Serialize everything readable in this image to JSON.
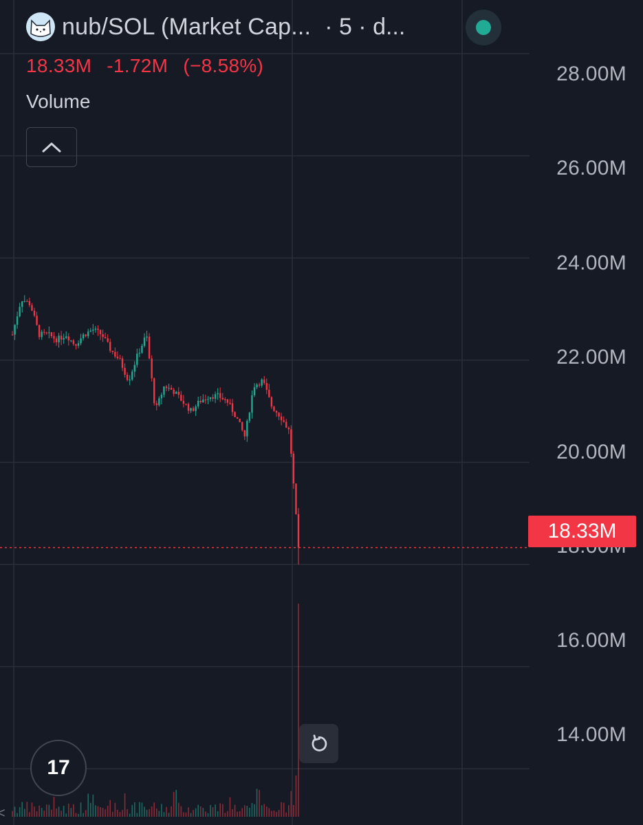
{
  "header": {
    "title": "nub/SOL (Market Cap...",
    "extra": "· 5 · d...",
    "avatar_icon": "cat-avatar-icon",
    "live_status_color": "#22ab94"
  },
  "price_info": {
    "last": "18.33M",
    "change": "-1.72M",
    "change_pct": "(−8.58%)",
    "color": "#f23645"
  },
  "volume": {
    "label": "Volume",
    "toggle_icon": "chevron-up-icon"
  },
  "controls": {
    "reset_icon": "reset-rotate-icon",
    "logo_icon": "tradingview-logo-icon",
    "logo_text": "17",
    "edge_mark": "<"
  },
  "colors": {
    "background": "#161a25",
    "grid": "#2a2e39",
    "up": "#22ab94",
    "down": "#f23645",
    "axis_text": "#b2b5be"
  },
  "chart_data": {
    "type": "line",
    "title": "nub/SOL (Market Cap...",
    "y_axis": {
      "ticks": [
        "28.00M",
        "26.00M",
        "24.00M",
        "22.00M",
        "20.00M",
        "18.00M",
        "16.00M",
        "14.00M"
      ],
      "tick_values": [
        28,
        26,
        24,
        22,
        20,
        18,
        16,
        14
      ],
      "range": [
        12.9,
        29.05
      ],
      "unit": "M",
      "side": "right"
    },
    "last_price_label": "18.33M",
    "last_price_value": 18.33,
    "grid": true,
    "series": [
      {
        "values": [
          22.5,
          23.2,
          23.1,
          22.5,
          22.5,
          22.4,
          22.5,
          22.3,
          22.5,
          22.6,
          22.5,
          22.2,
          22.0,
          21.6,
          22.1,
          22.5,
          21.0,
          21.5,
          21.4,
          21.2,
          21.0,
          21.2,
          21.3,
          21.3,
          21.2,
          20.9,
          20.5,
          21.5,
          21.6,
          21.1,
          20.9,
          20.6,
          18.3
        ]
      }
    ]
  }
}
